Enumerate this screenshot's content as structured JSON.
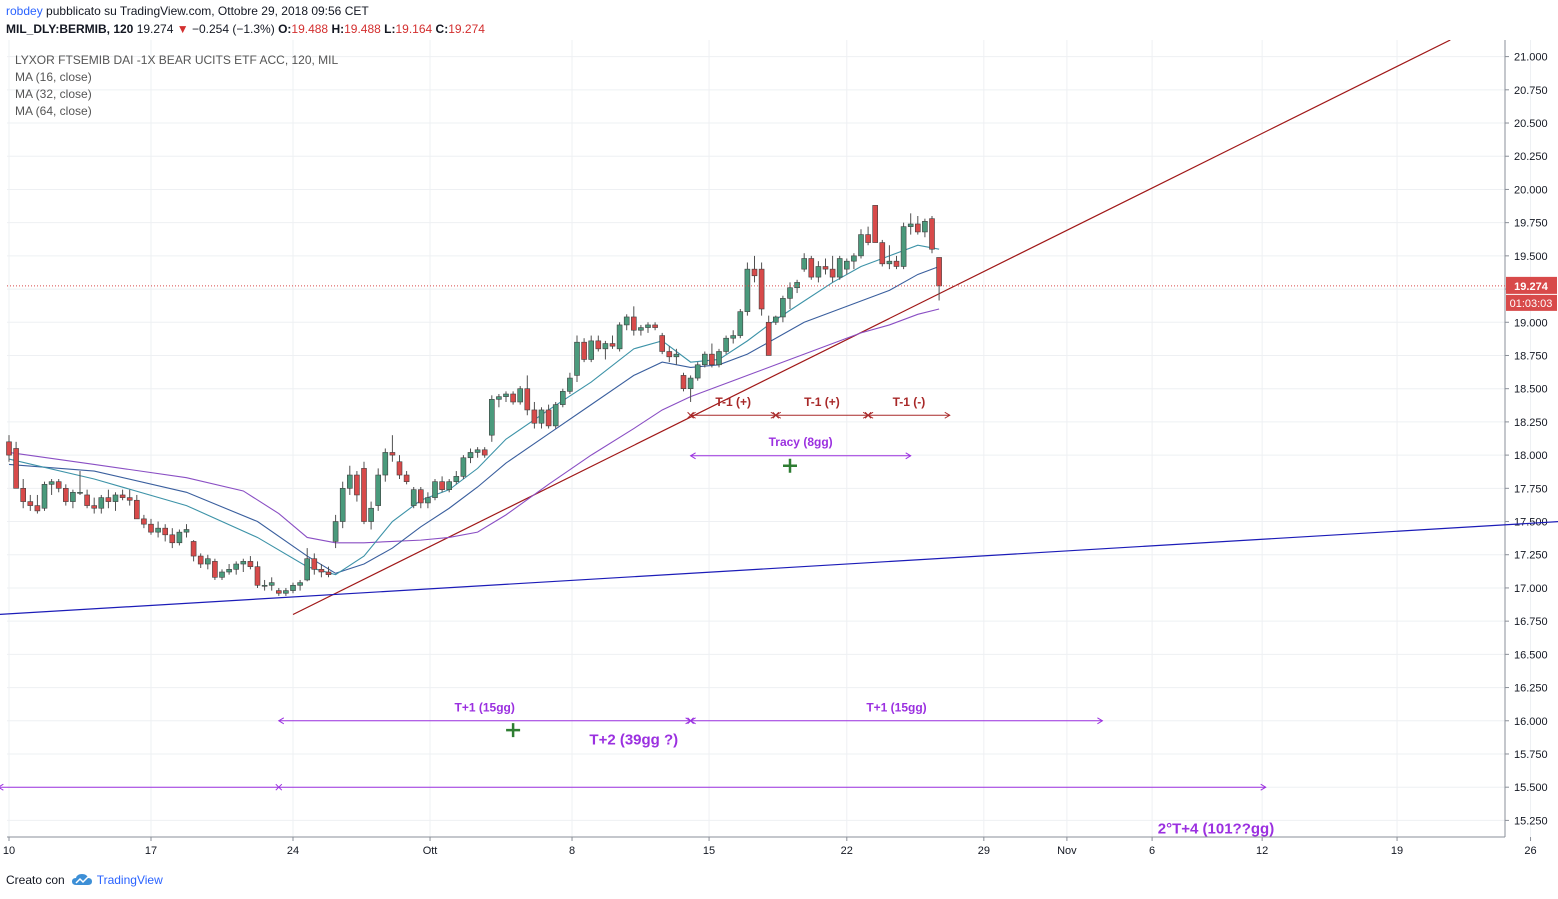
{
  "header": {
    "author": "robdey",
    "published": "pubblicato su TradingView.com, Ottobre 29, 2018 09:56 CET"
  },
  "symbol": {
    "ticker": "MIL_DLY:BERMIB, 120",
    "last": "19.274",
    "change": "−0.254 (−1.3%)",
    "o_label": "O:",
    "o": "19.488",
    "h_label": "H:",
    "h": "19.488",
    "l_label": "L:",
    "l": "19.164",
    "c_label": "C:",
    "c": "19.274"
  },
  "legend": {
    "title": "LYXOR FTSEMIB DAI -1X BEAR UCITS ETF ACC, 120, MIL",
    "ma1": "MA (16, close)",
    "ma2": "MA (32, close)",
    "ma3": "MA (64, close)"
  },
  "footer": {
    "created": "Creato con",
    "brand": "TradingView"
  },
  "colors": {
    "up": "#4a9a7c",
    "down": "#d84a4a",
    "ma16": "#3d93a8",
    "ma32": "#3a5f9e",
    "ma64": "#8a4fc4",
    "trend_red": "#a01818",
    "trend_blue": "#1c1cb8",
    "annot_purple": "#9b30e0",
    "annot_red": "#a82828",
    "cross_green": "#2e7d32"
  },
  "chart_data": {
    "type": "candlestick",
    "ylim": [
      15.125,
      21.125
    ],
    "y_ticks": [
      "21.000",
      "20.750",
      "20.500",
      "20.250",
      "20.000",
      "19.750",
      "19.500",
      "19.250",
      "19.000",
      "18.750",
      "18.500",
      "18.250",
      "18.000",
      "17.750",
      "17.500",
      "17.250",
      "17.000",
      "16.750",
      "16.500",
      "16.250",
      "16.000",
      "15.750",
      "15.500",
      "15.250"
    ],
    "x_ticks": [
      "10",
      "17",
      "24",
      "Ott",
      "8",
      "15",
      "22",
      "29",
      "Nov",
      "6",
      "12",
      "19",
      "26"
    ],
    "price_label": "19.274",
    "countdown": "01:03:03",
    "candles": [
      [
        18.1,
        18.15,
        17.95,
        18.0
      ],
      [
        18.05,
        18.1,
        17.75,
        17.75
      ],
      [
        17.75,
        17.82,
        17.6,
        17.65
      ],
      [
        17.65,
        17.7,
        17.58,
        17.62
      ],
      [
        17.62,
        17.7,
        17.56,
        17.58
      ],
      [
        17.6,
        17.8,
        17.58,
        17.78
      ],
      [
        17.78,
        17.82,
        17.7,
        17.8
      ],
      [
        17.8,
        17.82,
        17.72,
        17.75
      ],
      [
        17.75,
        17.78,
        17.62,
        17.65
      ],
      [
        17.65,
        17.74,
        17.6,
        17.72
      ],
      [
        17.72,
        17.88,
        17.7,
        17.72
      ],
      [
        17.7,
        17.74,
        17.6,
        17.62
      ],
      [
        17.62,
        17.68,
        17.56,
        17.6
      ],
      [
        17.6,
        17.7,
        17.56,
        17.68
      ],
      [
        17.68,
        17.74,
        17.6,
        17.65
      ],
      [
        17.65,
        17.72,
        17.58,
        17.7
      ],
      [
        17.7,
        17.74,
        17.66,
        17.68
      ],
      [
        17.68,
        17.74,
        17.62,
        17.66
      ],
      [
        17.66,
        17.7,
        17.52,
        17.52
      ],
      [
        17.52,
        17.55,
        17.45,
        17.48
      ],
      [
        17.48,
        17.52,
        17.4,
        17.42
      ],
      [
        17.42,
        17.5,
        17.38,
        17.45
      ],
      [
        17.45,
        17.48,
        17.35,
        17.4
      ],
      [
        17.4,
        17.45,
        17.3,
        17.34
      ],
      [
        17.34,
        17.44,
        17.32,
        17.42
      ],
      [
        17.42,
        17.48,
        17.38,
        17.44
      ],
      [
        17.35,
        17.36,
        17.2,
        17.24
      ],
      [
        17.24,
        17.26,
        17.15,
        17.18
      ],
      [
        17.18,
        17.25,
        17.14,
        17.22
      ],
      [
        17.2,
        17.22,
        17.06,
        17.08
      ],
      [
        17.08,
        17.14,
        17.06,
        17.12
      ],
      [
        17.12,
        17.18,
        17.1,
        17.14
      ],
      [
        17.14,
        17.2,
        17.1,
        17.18
      ],
      [
        17.18,
        17.22,
        17.12,
        17.2
      ],
      [
        17.2,
        17.24,
        17.14,
        17.16
      ],
      [
        17.16,
        17.2,
        17.0,
        17.02
      ],
      [
        17.02,
        17.06,
        16.98,
        17.02
      ],
      [
        17.02,
        17.08,
        16.98,
        17.04
      ],
      [
        16.98,
        17.0,
        16.94,
        16.96
      ],
      [
        16.96,
        17.0,
        16.94,
        16.98
      ],
      [
        16.98,
        17.04,
        16.96,
        17.02
      ],
      [
        17.02,
        17.06,
        16.98,
        17.04
      ],
      [
        17.06,
        17.3,
        17.05,
        17.22
      ],
      [
        17.22,
        17.26,
        17.1,
        17.14
      ],
      [
        17.14,
        17.18,
        17.08,
        17.12
      ],
      [
        17.12,
        17.16,
        17.08,
        17.1
      ],
      [
        17.35,
        17.55,
        17.3,
        17.5
      ],
      [
        17.5,
        17.8,
        17.45,
        17.75
      ],
      [
        17.75,
        17.92,
        17.7,
        17.85
      ],
      [
        17.85,
        17.88,
        17.65,
        17.7
      ],
      [
        17.9,
        17.95,
        17.48,
        17.5
      ],
      [
        17.5,
        17.65,
        17.44,
        17.6
      ],
      [
        17.62,
        17.9,
        17.58,
        17.85
      ],
      [
        17.85,
        18.05,
        17.8,
        18.02
      ],
      [
        18.02,
        18.15,
        17.95,
        18.0
      ],
      [
        17.95,
        18.0,
        17.82,
        17.85
      ],
      [
        17.85,
        17.88,
        17.78,
        17.8
      ],
      [
        17.62,
        17.76,
        17.6,
        17.74
      ],
      [
        17.74,
        17.76,
        17.6,
        17.64
      ],
      [
        17.64,
        17.72,
        17.6,
        17.68
      ],
      [
        17.68,
        17.82,
        17.66,
        17.8
      ],
      [
        17.8,
        17.84,
        17.72,
        17.74
      ],
      [
        17.74,
        17.82,
        17.72,
        17.8
      ],
      [
        17.8,
        17.88,
        17.78,
        17.84
      ],
      [
        17.84,
        18.0,
        17.82,
        17.98
      ],
      [
        17.98,
        18.05,
        17.94,
        18.02
      ],
      [
        18.02,
        18.06,
        17.98,
        18.04
      ],
      [
        18.04,
        18.06,
        17.98,
        18.0
      ],
      [
        18.15,
        18.45,
        18.1,
        18.42
      ],
      [
        18.42,
        18.46,
        18.36,
        18.44
      ],
      [
        18.44,
        18.48,
        18.4,
        18.46
      ],
      [
        18.46,
        18.48,
        18.38,
        18.4
      ],
      [
        18.4,
        18.52,
        18.38,
        18.5
      ],
      [
        18.5,
        18.6,
        18.3,
        18.34
      ],
      [
        18.34,
        18.4,
        18.2,
        18.24
      ],
      [
        18.24,
        18.36,
        18.2,
        18.34
      ],
      [
        18.34,
        18.38,
        18.2,
        18.22
      ],
      [
        18.22,
        18.4,
        18.2,
        18.38
      ],
      [
        18.38,
        18.5,
        18.36,
        18.48
      ],
      [
        18.48,
        18.62,
        18.46,
        18.58
      ],
      [
        18.6,
        18.9,
        18.55,
        18.85
      ],
      [
        18.85,
        18.88,
        18.7,
        18.72
      ],
      [
        18.72,
        18.9,
        18.7,
        18.86
      ],
      [
        18.86,
        18.9,
        18.78,
        18.8
      ],
      [
        18.8,
        18.86,
        18.72,
        18.84
      ],
      [
        18.84,
        18.9,
        18.8,
        18.82
      ],
      [
        18.8,
        19.0,
        18.78,
        18.98
      ],
      [
        18.98,
        19.06,
        18.94,
        19.04
      ],
      [
        19.04,
        19.12,
        18.9,
        18.94
      ],
      [
        18.94,
        18.98,
        18.9,
        18.96
      ],
      [
        18.96,
        19.0,
        18.92,
        18.98
      ],
      [
        18.98,
        19.0,
        18.94,
        18.96
      ],
      [
        18.9,
        18.92,
        18.76,
        18.78
      ],
      [
        18.78,
        18.82,
        18.7,
        18.74
      ],
      [
        18.74,
        18.8,
        18.68,
        18.76
      ],
      [
        18.6,
        18.62,
        18.48,
        18.5
      ],
      [
        18.5,
        18.6,
        18.4,
        18.58
      ],
      [
        18.58,
        18.7,
        18.56,
        18.68
      ],
      [
        18.68,
        18.78,
        18.66,
        18.76
      ],
      [
        18.76,
        18.84,
        18.66,
        18.68
      ],
      [
        18.68,
        18.8,
        18.66,
        18.78
      ],
      [
        18.78,
        18.9,
        18.76,
        18.88
      ],
      [
        18.88,
        18.94,
        18.84,
        18.9
      ],
      [
        18.9,
        19.1,
        18.88,
        19.08
      ],
      [
        19.08,
        19.45,
        19.05,
        19.4
      ],
      [
        19.4,
        19.5,
        19.3,
        19.35
      ],
      [
        19.4,
        19.45,
        19.05,
        19.1
      ],
      [
        19.0,
        19.05,
        18.75,
        18.75
      ],
      [
        19.0,
        19.05,
        18.98,
        19.04
      ],
      [
        19.04,
        19.2,
        19.0,
        19.18
      ],
      [
        19.18,
        19.3,
        19.1,
        19.26
      ],
      [
        19.26,
        19.32,
        19.22,
        19.3
      ],
      [
        19.4,
        19.52,
        19.38,
        19.48
      ],
      [
        19.48,
        19.5,
        19.32,
        19.34
      ],
      [
        19.34,
        19.46,
        19.3,
        19.42
      ],
      [
        19.42,
        19.48,
        19.36,
        19.4
      ],
      [
        19.4,
        19.5,
        19.3,
        19.34
      ],
      [
        19.34,
        19.5,
        19.32,
        19.48
      ],
      [
        19.4,
        19.48,
        19.36,
        19.46
      ],
      [
        19.46,
        19.52,
        19.4,
        19.5
      ],
      [
        19.5,
        19.7,
        19.48,
        19.66
      ],
      [
        19.66,
        19.72,
        19.58,
        19.6
      ],
      [
        19.88,
        19.88,
        19.6,
        19.6
      ],
      [
        19.6,
        19.62,
        19.42,
        19.44
      ],
      [
        19.44,
        19.58,
        19.4,
        19.46
      ],
      [
        19.46,
        19.5,
        19.4,
        19.42
      ],
      [
        19.42,
        19.75,
        19.4,
        19.72
      ],
      [
        19.72,
        19.82,
        19.66,
        19.74
      ],
      [
        19.74,
        19.8,
        19.66,
        19.68
      ],
      [
        19.68,
        19.78,
        19.64,
        19.76
      ],
      [
        19.78,
        19.8,
        19.52,
        19.55
      ],
      [
        19.488,
        19.488,
        19.164,
        19.274
      ]
    ],
    "ma16": [
      [
        0,
        17.97
      ],
      [
        12,
        17.82
      ],
      [
        25,
        17.62
      ],
      [
        35,
        17.38
      ],
      [
        42,
        17.16
      ],
      [
        46,
        17.1
      ],
      [
        50,
        17.24
      ],
      [
        54,
        17.5
      ],
      [
        58,
        17.66
      ],
      [
        62,
        17.74
      ],
      [
        66,
        17.9
      ],
      [
        70,
        18.12
      ],
      [
        76,
        18.34
      ],
      [
        82,
        18.55
      ],
      [
        88,
        18.8
      ],
      [
        92,
        18.86
      ],
      [
        96,
        18.7
      ],
      [
        100,
        18.72
      ],
      [
        104,
        18.86
      ],
      [
        108,
        19.02
      ],
      [
        112,
        19.16
      ],
      [
        116,
        19.3
      ],
      [
        120,
        19.42
      ],
      [
        124,
        19.5
      ],
      [
        128,
        19.58
      ],
      [
        131,
        19.55
      ]
    ],
    "ma32": [
      [
        0,
        17.93
      ],
      [
        12,
        17.88
      ],
      [
        25,
        17.72
      ],
      [
        35,
        17.5
      ],
      [
        42,
        17.24
      ],
      [
        46,
        17.11
      ],
      [
        50,
        17.18
      ],
      [
        54,
        17.3
      ],
      [
        58,
        17.46
      ],
      [
        62,
        17.6
      ],
      [
        66,
        17.76
      ],
      [
        70,
        17.94
      ],
      [
        76,
        18.16
      ],
      [
        82,
        18.38
      ],
      [
        88,
        18.6
      ],
      [
        92,
        18.7
      ],
      [
        96,
        18.66
      ],
      [
        100,
        18.68
      ],
      [
        104,
        18.76
      ],
      [
        108,
        18.88
      ],
      [
        112,
        19.0
      ],
      [
        116,
        19.08
      ],
      [
        120,
        19.16
      ],
      [
        124,
        19.24
      ],
      [
        128,
        19.36
      ],
      [
        131,
        19.42
      ]
    ],
    "ma64": [
      [
        0,
        18.02
      ],
      [
        12,
        17.93
      ],
      [
        25,
        17.83
      ],
      [
        33,
        17.73
      ],
      [
        38,
        17.56
      ],
      [
        42,
        17.38
      ],
      [
        46,
        17.34
      ],
      [
        50,
        17.34
      ],
      [
        54,
        17.35
      ],
      [
        58,
        17.36
      ],
      [
        62,
        17.38
      ],
      [
        66,
        17.42
      ],
      [
        70,
        17.55
      ],
      [
        76,
        17.78
      ],
      [
        82,
        18.0
      ],
      [
        88,
        18.2
      ],
      [
        92,
        18.34
      ],
      [
        96,
        18.44
      ],
      [
        100,
        18.52
      ],
      [
        104,
        18.6
      ],
      [
        108,
        18.68
      ],
      [
        112,
        18.76
      ],
      [
        116,
        18.84
      ],
      [
        120,
        18.92
      ],
      [
        124,
        18.98
      ],
      [
        128,
        19.06
      ],
      [
        131,
        19.1
      ]
    ],
    "trendlines": [
      {
        "color_key": "trend_red",
        "x1": 40,
        "y1": 16.8,
        "x2": 203,
        "y2": 21.125
      },
      {
        "color_key": "trend_blue",
        "x1": -1.5,
        "y1": 16.8,
        "x2": 218.5,
        "y2": 17.5
      }
    ],
    "annotations": [
      {
        "label": "T-1 (+)",
        "color_key": "annot_red",
        "x1": 96,
        "x2": 108,
        "y": 18.3,
        "ly": 18.37,
        "size": 12,
        "ticks": [
          96,
          108
        ]
      },
      {
        "label": "T-1 (+)",
        "color_key": "annot_red",
        "x1": 108,
        "x2": 121,
        "y": 18.3,
        "ly": 18.37,
        "size": 12,
        "ticks": [
          121
        ]
      },
      {
        "label": "T-1 (-)",
        "color_key": "annot_red",
        "x1": 121,
        "x2": 132.5,
        "y": 18.3,
        "ly": 18.37,
        "size": 12
      },
      {
        "label": "Tracy (8gg)",
        "color_key": "annot_purple",
        "x1": 96,
        "x2": 127,
        "y": 17.995,
        "ly": 18.07,
        "size": 12
      },
      {
        "label": "T+1 (15gg)",
        "color_key": "annot_purple",
        "x1": 38,
        "x2": 96,
        "y": 16.0,
        "ly": 16.07,
        "size": 12,
        "ticks": [
          96
        ]
      },
      {
        "label": "T+1 (15gg)",
        "color_key": "annot_purple",
        "x1": 96,
        "x2": 154,
        "y": 16.0,
        "ly": 16.07,
        "size": 12
      },
      {
        "label": "T+2 (39gg ?)",
        "color_key": "annot_purple",
        "x1": -1.5,
        "x2": 177,
        "y": 15.5,
        "ly": 15.82,
        "lx": 88,
        "size": 15,
        "ticks": [
          38
        ]
      },
      {
        "label": "2°T+4 (101??gg)",
        "color_key": "annot_purple",
        "lx": 170,
        "ly": 15.15,
        "size": 15
      }
    ],
    "crosses": [
      [
        110,
        17.92
      ],
      [
        71,
        15.93
      ]
    ]
  }
}
